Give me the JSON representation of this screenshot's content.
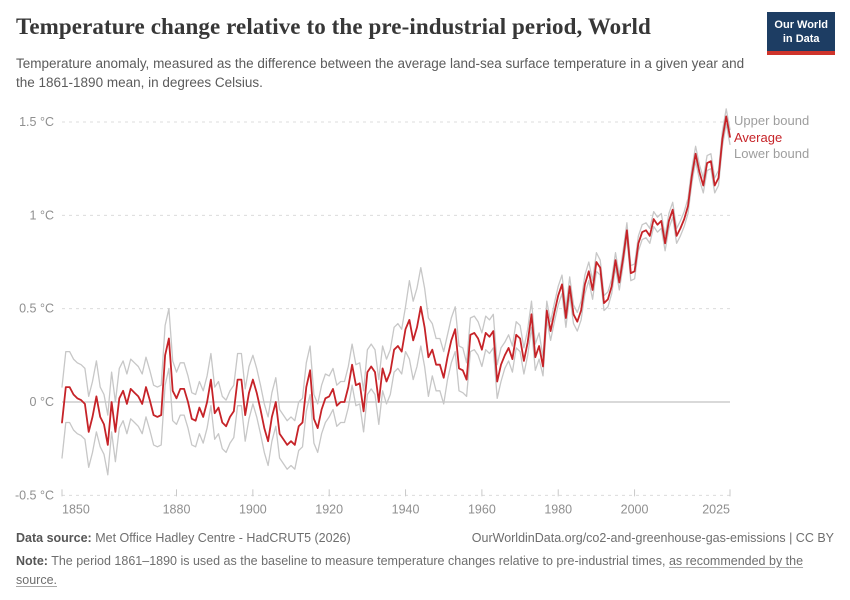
{
  "header": {
    "title": "Temperature change relative to the pre-industrial period, World",
    "subtitle": "Temperature anomaly, measured as the difference between the average land-sea surface temperature in a given year and the 1861-1890 mean, in degrees Celsius.",
    "logo_line1": "Our World",
    "logo_line2": "in Data",
    "logo_bg_color": "#1d3d63",
    "logo_stripe_color": "#cf342b"
  },
  "footer": {
    "data_source_label": "Data source:",
    "data_source_value": "Met Office Hadley Centre - HadCRUT5 (2026)",
    "url": "OurWorldinData.org/co2-and-greenhouse-gas-emissions",
    "license": " | CC BY",
    "note_label": "Note:",
    "note_text": "The period 1861–1890 is used as the baseline to measure temperature changes relative to pre-industrial times,",
    "note_link": "as recommended by the source."
  },
  "chart_data": {
    "type": "line",
    "title": "Temperature change relative to the pre-industrial period, World",
    "xlabel": "",
    "ylabel": "",
    "y_unit": "°C",
    "x_range": [
      1850,
      2025
    ],
    "y_range": [
      -0.5,
      1.6
    ],
    "grid": "dashed-horizontal",
    "legend_position": "right-top",
    "x_ticks": [
      1850,
      1880,
      1900,
      1920,
      1940,
      1960,
      1980,
      2000,
      2025
    ],
    "y_ticks": [
      {
        "value": -0.5,
        "label": "-0.5 °C"
      },
      {
        "value": 0,
        "label": "0 °C"
      },
      {
        "value": 0.5,
        "label": "0.5 °C"
      },
      {
        "value": 1,
        "label": "1 °C"
      },
      {
        "value": 1.5,
        "label": "1.5 °C"
      }
    ],
    "years_start": 1850,
    "colors": {
      "average": "#c62328",
      "bounds": "#c7c7c7",
      "gridline": "#dcdcdc",
      "zero_line": "#b3b3b3",
      "tick_text": "#8f8f8f",
      "legend_gray": "#9e9e9e"
    },
    "series": [
      {
        "name": "Upper bound",
        "color": "#c7c7c7",
        "label_color": "#9e9e9e",
        "values": [
          0.08,
          0.27,
          0.27,
          0.23,
          0.21,
          0.2,
          0.18,
          0.03,
          0.11,
          0.22,
          0.08,
          0.04,
          -0.07,
          0.16,
          0,
          0.18,
          0.22,
          0.15,
          0.23,
          0.21,
          0.19,
          0.15,
          0.24,
          0.17,
          0.09,
          0.08,
          0.09,
          0.41,
          0.5,
          0.22,
          0.16,
          0.21,
          0.21,
          0.14,
          0.05,
          0.04,
          0.11,
          0.06,
          0.14,
          0.26,
          0.08,
          0.11,
          0.03,
          0.01,
          0.06,
          0.09,
          0.26,
          0.26,
          0.07,
          0.19,
          0.25,
          0.18,
          0.09,
          -0.01,
          -0.08,
          0.05,
          0.13,
          -0.04,
          -0.07,
          -0.1,
          -0.08,
          -0.1,
          0,
          0.02,
          0.21,
          0.3,
          0.04,
          -0.01,
          0.09,
          0.15,
          0.14,
          0.18,
          0.09,
          0.11,
          0.11,
          0.19,
          0.31,
          0.2,
          0.21,
          0.06,
          0.28,
          0.31,
          0.28,
          0.12,
          0.3,
          0.23,
          0.28,
          0.4,
          0.42,
          0.39,
          0.51,
          0.65,
          0.54,
          0.61,
          0.72,
          0.61,
          0.45,
          0.42,
          0.34,
          0.34,
          0.27,
          0.36,
          0.45,
          0.51,
          0.3,
          0.29,
          0.21,
          0.45,
          0.46,
          0.43,
          0.37,
          0.46,
          0.44,
          0.47,
          0.2,
          0.29,
          0.32,
          0.36,
          0.3,
          0.43,
          0.41,
          0.29,
          0.39,
          0.54,
          0.31,
          0.37,
          0.24,
          0.54,
          0.43,
          0.53,
          0.62,
          0.68,
          0.5,
          0.67,
          0.52,
          0.48,
          0.54,
          0.68,
          0.75,
          0.65,
          0.8,
          0.76,
          0.57,
          0.59,
          0.66,
          0.8,
          0.68,
          0.81,
          0.96,
          0.73,
          0.74,
          0.89,
          0.95,
          0.96,
          0.93,
          1.02,
          0.99,
          1.01,
          0.89,
          1.01,
          1.07,
          0.93,
          0.97,
          1.02,
          1.09,
          1.25,
          1.37,
          1.27,
          1.2,
          1.32,
          1.33,
          1.2,
          1.24,
          1.45,
          1.57,
          1.46
        ]
      },
      {
        "name": "Average",
        "color": "#c62328",
        "label_color": "#c62328",
        "values": [
          -0.11,
          0.08,
          0.08,
          0.04,
          0.02,
          0.01,
          -0.01,
          -0.16,
          -0.08,
          0.03,
          -0.08,
          -0.12,
          -0.23,
          0,
          -0.16,
          0.02,
          0.06,
          -0.01,
          0.07,
          0.05,
          0.03,
          -0.01,
          0.08,
          0.01,
          -0.07,
          -0.08,
          -0.07,
          0.25,
          0.34,
          0.06,
          0.02,
          0.07,
          0.07,
          0,
          -0.09,
          -0.1,
          -0.03,
          -0.08,
          0,
          0.12,
          -0.06,
          -0.03,
          -0.11,
          -0.13,
          -0.08,
          -0.05,
          0.12,
          0.12,
          -0.07,
          0.05,
          0.12,
          0.05,
          -0.04,
          -0.14,
          -0.21,
          -0.08,
          0,
          -0.17,
          -0.2,
          -0.23,
          -0.21,
          -0.23,
          -0.13,
          -0.11,
          0.08,
          0.17,
          -0.09,
          -0.14,
          -0.04,
          0.02,
          0.03,
          0.07,
          -0.02,
          0,
          0,
          0.08,
          0.2,
          0.09,
          0.1,
          -0.05,
          0.16,
          0.19,
          0.16,
          0,
          0.18,
          0.11,
          0.16,
          0.28,
          0.3,
          0.27,
          0.39,
          0.44,
          0.33,
          0.4,
          0.51,
          0.4,
          0.24,
          0.28,
          0.2,
          0.2,
          0.13,
          0.24,
          0.33,
          0.39,
          0.18,
          0.17,
          0.12,
          0.36,
          0.37,
          0.34,
          0.28,
          0.37,
          0.35,
          0.38,
          0.11,
          0.2,
          0.25,
          0.29,
          0.23,
          0.36,
          0.34,
          0.22,
          0.32,
          0.47,
          0.24,
          0.3,
          0.19,
          0.49,
          0.38,
          0.48,
          0.57,
          0.63,
          0.45,
          0.62,
          0.47,
          0.43,
          0.49,
          0.63,
          0.7,
          0.6,
          0.75,
          0.72,
          0.53,
          0.55,
          0.62,
          0.76,
          0.64,
          0.77,
          0.92,
          0.69,
          0.7,
          0.85,
          0.91,
          0.92,
          0.89,
          0.98,
          0.95,
          0.97,
          0.85,
          0.97,
          1.03,
          0.89,
          0.93,
          0.98,
          1.05,
          1.21,
          1.33,
          1.23,
          1.16,
          1.28,
          1.29,
          1.16,
          1.2,
          1.41,
          1.53,
          1.42
        ]
      },
      {
        "name": "Lower bound",
        "color": "#c7c7c7",
        "label_color": "#9e9e9e",
        "values": [
          -0.3,
          -0.11,
          -0.11,
          -0.15,
          -0.17,
          -0.18,
          -0.2,
          -0.35,
          -0.27,
          -0.16,
          -0.24,
          -0.28,
          -0.39,
          -0.16,
          -0.32,
          -0.14,
          -0.1,
          -0.17,
          -0.09,
          -0.11,
          -0.13,
          -0.17,
          -0.08,
          -0.15,
          -0.23,
          -0.24,
          -0.23,
          0.09,
          0.18,
          -0.1,
          -0.12,
          -0.07,
          -0.07,
          -0.14,
          -0.23,
          -0.24,
          -0.17,
          -0.22,
          -0.14,
          -0.02,
          -0.2,
          -0.17,
          -0.25,
          -0.27,
          -0.22,
          -0.19,
          -0.02,
          -0.02,
          -0.21,
          -0.09,
          -0.01,
          -0.08,
          -0.17,
          -0.27,
          -0.34,
          -0.21,
          -0.13,
          -0.3,
          -0.33,
          -0.36,
          -0.34,
          -0.36,
          -0.26,
          -0.24,
          -0.05,
          0.04,
          -0.22,
          -0.27,
          -0.17,
          -0.11,
          -0.08,
          -0.04,
          -0.13,
          -0.11,
          -0.11,
          -0.03,
          0.09,
          -0.02,
          -0.01,
          -0.16,
          0.04,
          0.07,
          0.04,
          -0.12,
          0.06,
          -0.01,
          0.04,
          0.16,
          0.18,
          0.15,
          0.27,
          0.23,
          0.12,
          0.19,
          0.3,
          0.19,
          0.03,
          0.14,
          0.06,
          0.06,
          -0.01,
          0.12,
          0.21,
          0.27,
          0.06,
          0.05,
          0.03,
          0.27,
          0.28,
          0.25,
          0.19,
          0.28,
          0.26,
          0.29,
          0.02,
          0.11,
          0.18,
          0.22,
          0.16,
          0.29,
          0.27,
          0.15,
          0.25,
          0.4,
          0.17,
          0.23,
          0.14,
          0.44,
          0.33,
          0.43,
          0.52,
          0.58,
          0.4,
          0.57,
          0.42,
          0.38,
          0.44,
          0.58,
          0.65,
          0.55,
          0.7,
          0.68,
          0.49,
          0.51,
          0.58,
          0.72,
          0.6,
          0.73,
          0.88,
          0.65,
          0.66,
          0.81,
          0.87,
          0.88,
          0.85,
          0.94,
          0.91,
          0.93,
          0.81,
          0.93,
          0.99,
          0.85,
          0.89,
          0.94,
          1.01,
          1.17,
          1.29,
          1.19,
          1.12,
          1.24,
          1.25,
          1.12,
          1.16,
          1.37,
          1.49,
          1.38
        ]
      }
    ]
  }
}
